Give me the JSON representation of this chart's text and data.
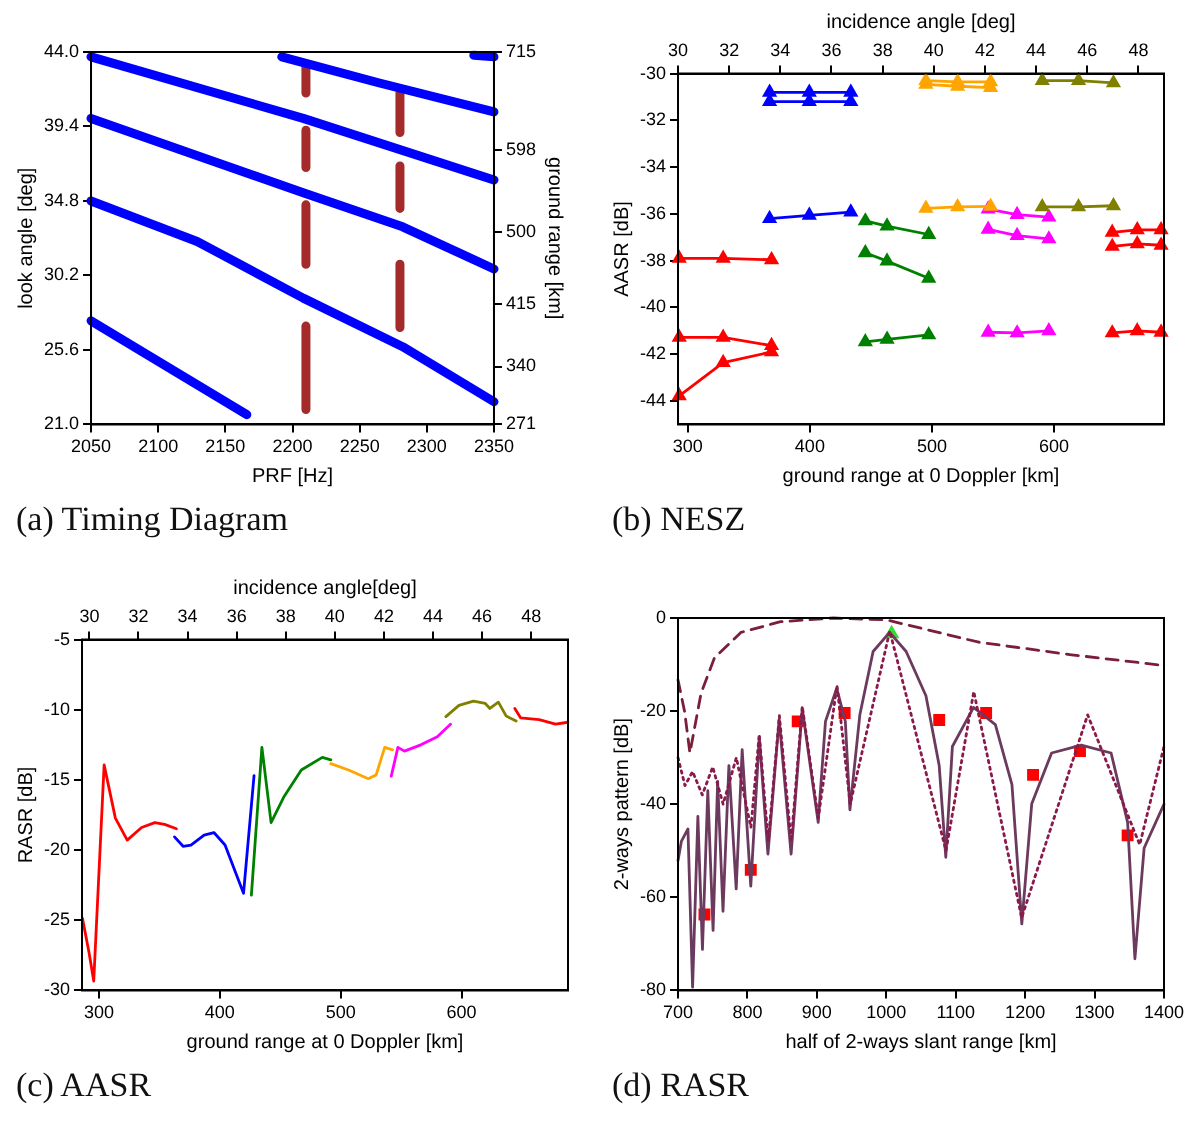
{
  "chart_data": [
    {
      "type": "line",
      "title": "(a) Timing Diagram",
      "xlabel": "PRF [Hz]",
      "ylabel": "look angle [deg]",
      "y2label": "ground range [km]",
      "xlim": [
        2050,
        2350
      ],
      "xticks": [
        2050,
        2100,
        2150,
        2200,
        2250,
        2300,
        2350
      ],
      "ylim": [
        21,
        44
      ],
      "yticks": [
        {
          "value": 21,
          "label": "21.0"
        },
        25.6,
        30.2,
        34.8,
        39.4,
        {
          "value": 44,
          "label": "44.0"
        }
      ],
      "y2lim": [
        271,
        715
      ],
      "y2ticks": [
        271,
        340,
        415,
        500,
        598,
        715
      ],
      "series": [
        {
          "color": "#0000ff",
          "x": [
            2192,
            2264,
            2350
          ],
          "values": [
            43.7,
            42.1,
            40.3
          ]
        },
        {
          "color": "#0000ff",
          "x": [
            2050,
            2208,
            2350
          ],
          "values": [
            43.7,
            39.9,
            36.1
          ]
        },
        {
          "color": "#0000ff",
          "x": [
            2050,
            2208,
            2282,
            2350
          ],
          "values": [
            39.9,
            35.3,
            33.2,
            30.6
          ]
        },
        {
          "color": "#0000ff",
          "x": [
            2050,
            2129,
            2208,
            2282,
            2350
          ],
          "values": [
            34.8,
            32.3,
            28.8,
            25.8,
            22.4
          ]
        },
        {
          "color": "#0000ff",
          "x": [
            2050,
            2114,
            2166
          ],
          "values": [
            27.4,
            24.2,
            21.6
          ]
        },
        {
          "color": "#0000ff",
          "x": [
            2335,
            2350
          ],
          "values": [
            43.8,
            43.7
          ]
        },
        {
          "color": "#a52a2a",
          "x": [
            2210,
            2210,
            null,
            2210,
            2210,
            null,
            2210,
            2210,
            null,
            2210,
            2210
          ],
          "values": [
            43.08,
            41.47,
            null,
            39.17,
            36.87,
            null,
            34.56,
            30.89,
            null,
            27.07,
            21.92
          ]
        },
        {
          "color": "#a52a2a",
          "x": [
            2280,
            2280,
            null,
            2280,
            2280,
            null,
            2280,
            2280
          ],
          "values": [
            41.47,
            39.03,
            null,
            36.96,
            34.34,
            null,
            30.89,
            26.98
          ]
        }
      ]
    },
    {
      "type": "line",
      "title": "(b) NESZ",
      "xlabel": "ground range at 0 Doppler [km]",
      "x2label": "incidence angle [deg]",
      "ylabel": "AASR [dB]",
      "marker": "triangle",
      "xlim": [
        292,
        690
      ],
      "xticks": [
        300,
        400,
        500,
        600
      ],
      "x2lim": [
        30,
        49
      ],
      "x2ticks": [
        30,
        32,
        34,
        36,
        38,
        40,
        42,
        44,
        46,
        48
      ],
      "ylim": [
        -45,
        -30
      ],
      "yticks": [
        -30,
        -32,
        -34,
        -36,
        -38,
        -40,
        -42,
        -44
      ],
      "series": [
        {
          "color": "#0000ff",
          "x": [
            367,
            399.5,
            433.5
          ],
          "values": [
            -30.8,
            -30.8,
            -30.8
          ]
        },
        {
          "color": "#0000ff",
          "x": [
            367,
            399.5,
            433.5
          ],
          "values": [
            -31.2,
            -31.2,
            -31.2
          ]
        },
        {
          "color": "#0000ff",
          "x": [
            367,
            399.5,
            433.5
          ],
          "values": [
            -36.2,
            -36.06,
            -35.92
          ]
        },
        {
          "color": "#ffa500",
          "x": [
            495,
            521,
            548
          ],
          "values": [
            -30.3,
            -30.35,
            -30.35
          ]
        },
        {
          "color": "#ffa500",
          "x": [
            495,
            521,
            548
          ],
          "values": [
            -30.46,
            -30.54,
            -30.6
          ]
        },
        {
          "color": "#ffa500",
          "x": [
            495,
            521,
            548
          ],
          "values": [
            -35.76,
            -35.7,
            -35.68
          ]
        },
        {
          "color": "#808000",
          "x": [
            590.3,
            620,
            648.6
          ],
          "values": [
            -30.3,
            -30.3,
            -30.4
          ]
        },
        {
          "color": "#808000",
          "x": [
            590.3,
            620,
            648.6
          ],
          "values": [
            -35.7,
            -35.7,
            -35.65
          ]
        },
        {
          "color": "#008000",
          "x": [
            445.4,
            463.2,
            497.3
          ],
          "values": [
            -36.3,
            -36.52,
            -36.88
          ]
        },
        {
          "color": "#008000",
          "x": [
            445.4,
            463.2,
            497.3
          ],
          "values": [
            -37.66,
            -38.02,
            -38.75
          ]
        },
        {
          "color": "#008000",
          "x": [
            445.4,
            463.2,
            497.3
          ],
          "values": [
            -41.47,
            -41.36,
            -41.17
          ]
        },
        {
          "color": "#ff00ff",
          "x": [
            546,
            569.7,
            595.7
          ],
          "values": [
            -35.79,
            -36.03,
            -36.14
          ]
        },
        {
          "color": "#ff00ff",
          "x": [
            546,
            569.7,
            595.7
          ],
          "values": [
            -36.66,
            -36.93,
            -37.07
          ]
        },
        {
          "color": "#ff00ff",
          "x": [
            546,
            569.7,
            595.7
          ],
          "values": [
            -41.06,
            -41.09,
            -41.0
          ]
        },
        {
          "color": "#ff0000",
          "x": [
            647.6,
            668.1,
            687.6
          ],
          "values": [
            -36.79,
            -36.68,
            -36.68
          ]
        },
        {
          "color": "#ff0000",
          "x": [
            647.6,
            668.1,
            687.6
          ],
          "values": [
            -37.39,
            -37.28,
            -37.34
          ]
        },
        {
          "color": "#ff0000",
          "x": [
            647.6,
            668.1,
            687.6
          ],
          "values": [
            -41.09,
            -41.0,
            -41.06
          ]
        },
        {
          "color": "#ff0000",
          "x": [
            293,
            329,
            368.6
          ],
          "values": [
            -37.9,
            -37.9,
            -37.96
          ]
        },
        {
          "color": "#ff0000",
          "x": [
            293,
            329,
            368.6
          ],
          "values": [
            -41.28,
            -41.28,
            -41.63
          ]
        },
        {
          "color": "#ff0000",
          "x": [
            293,
            329,
            368.6
          ],
          "values": [
            -43.78,
            -42.36,
            -41.9
          ]
        }
      ]
    },
    {
      "type": "line",
      "title": "(c) AASR",
      "xlabel": "ground range at 0 Doppler [km]",
      "x2label": "incidence angle[deg]",
      "ylabel": "RASR [dB]",
      "xlim": [
        286,
        688
      ],
      "xticks": [
        300,
        400,
        500,
        600
      ],
      "x2lim": [
        29.7,
        49.5
      ],
      "x2ticks": [
        30,
        32,
        34,
        36,
        38,
        40,
        42,
        44,
        46,
        48
      ],
      "ylim": [
        -30,
        -5
      ],
      "yticks": [
        -5,
        -10,
        -15,
        -20,
        -25,
        -30
      ],
      "series": [
        {
          "color": "#ff0000",
          "x": [
            286.4,
            291.8,
            295.7,
            304.3,
            313.6,
            323.4,
            335.3,
            346.2,
            354.3,
            364.1
          ],
          "values": [
            -24.87,
            -27.3,
            -29.33,
            -13.93,
            -17.72,
            -19.29,
            -18.39,
            -18.04,
            -18.17,
            -18.48
          ]
        },
        {
          "color": "#0000ff",
          "x": [
            362.5,
            369.6,
            376.1,
            387,
            395.1,
            404.3,
            419.6,
            428.3
          ],
          "values": [
            -19.06,
            -19.73,
            -19.64,
            -18.93,
            -18.75,
            -19.64,
            -23.08,
            -14.69
          ]
        },
        {
          "color": "#008000",
          "x": [
            426.1,
            434.8,
            442.4,
            453.3,
            467.4,
            484.8,
            491.8
          ],
          "values": [
            -23.21,
            -12.68,
            -18.04,
            -16.16,
            -14.29,
            -13.39,
            -13.57
          ]
        },
        {
          "color": "#ffa500",
          "x": [
            491.8,
            506.5,
            522.8,
            529.3,
            536.4,
            542.9
          ],
          "values": [
            -13.84,
            -14.29,
            -14.91,
            -14.64,
            -12.68,
            -12.86
          ]
        },
        {
          "color": "#ff00ff",
          "x": [
            541.8,
            547.3,
            552.7,
            566.3,
            579.9,
            590.8
          ],
          "values": [
            -14.73,
            -12.68,
            -12.95,
            -12.5,
            -11.92,
            -11.03
          ]
        },
        {
          "color": "#808000",
          "x": [
            587,
            597.8,
            609.8,
            619.6,
            623.4,
            630.4,
            636.9,
            645.1
          ],
          "values": [
            -10.49,
            -9.69,
            -9.38,
            -9.55,
            -9.91,
            -9.46,
            -10.45,
            -10.8
          ]
        },
        {
          "color": "#ff0000",
          "x": [
            644,
            648.9,
            664.1,
            677.7,
            688
          ],
          "values": [
            -9.91,
            -10.58,
            -10.71,
            -11.03,
            -10.89
          ]
        }
      ]
    },
    {
      "type": "line",
      "title": "(d) RASR",
      "xlabel": "half of 2-ways slant range [km]",
      "ylabel": "2-ways pattern [dB]",
      "xlim": [
        700,
        1400
      ],
      "xticks": [
        700,
        800,
        900,
        1000,
        1100,
        1200,
        1300,
        1400
      ],
      "ylim": [
        -80,
        0
      ],
      "yticks": [
        0,
        -20,
        -40,
        -60,
        -80
      ],
      "series": [
        {
          "color": "#8b1a4a",
          "line_style": "dotted",
          "x": [
            700,
            710,
            721,
            735,
            750,
            765,
            784,
            805,
            817,
            830,
            846,
            863,
            879,
            902,
            929,
            948,
            1005,
            1086,
            1126,
            1195,
            1290,
            1365,
            1400
          ],
          "values": [
            -30,
            -36,
            -33,
            -38,
            -32,
            -40,
            -30,
            -45,
            -25,
            -48,
            -21,
            -48,
            -19,
            -43,
            -14.5,
            -40,
            -2.8,
            -50,
            -15.8,
            -64.4,
            -20.8,
            -48.7,
            -27.6
          ]
        },
        {
          "color": "#6b3a5e",
          "x": [
            700,
            704.8,
            714.3,
            721,
            728.6,
            735.2,
            742.9,
            750.5,
            757.1,
            764.8,
            773.3,
            783.8,
            792.4,
            804.8,
            817.1,
            829.5,
            845.7,
            862.9,
            879,
            901.9,
            912.4,
            928.6,
            941,
            947.6,
            961.9,
            981,
            1004.8,
            1028.6,
            1057.1,
            1076.2,
            1085.7,
            1095.2,
            1125.7,
            1157.1,
            1181,
            1195.2,
            1209.5,
            1238.1,
            1281,
            1323.8,
            1347.6,
            1358.1,
            1371.4,
            1400
          ],
          "values": [
            -52.1,
            -48,
            -45.3,
            -79.3,
            -42.6,
            -71.2,
            -37.1,
            -67.1,
            -35.1,
            -63,
            -31.7,
            -58.2,
            -28.3,
            -57.6,
            -25.6,
            -50.7,
            -21.8,
            -50.7,
            -19.5,
            -43.9,
            -22.2,
            -15.1,
            -22.2,
            -41.2,
            -20.8,
            -7.2,
            -3.1,
            -7.2,
            -16.7,
            -31.7,
            -51.4,
            -27.6,
            -19.2,
            -22.9,
            -35.8,
            -65.7,
            -39.9,
            -29,
            -27.3,
            -29,
            -43.9,
            -73.2,
            -49.4,
            -40
          ]
        },
        {
          "color": "#7b1e3a",
          "line_style": "dashed",
          "x": [
            700,
            709.5,
            717.1,
            733.3,
            752.4,
            790.5,
            847.6,
            923.8,
            1000,
            1133.3,
            1266.7,
            1400
          ],
          "values": [
            -13.3,
            -20.1,
            -29,
            -16.1,
            -8.6,
            -3.1,
            -0.8,
            0,
            -0.4,
            -5.2,
            -7.9,
            -10.2
          ]
        },
        {
          "type": "scatter",
          "color": "#ff0000",
          "marker": "square",
          "x": [
            738.1,
            804.8,
            872.4,
            940,
            1076.2,
            1143.8,
            1211.4,
            1279,
            1347.6
          ],
          "values": [
            -63.7,
            -54.1,
            -22.2,
            -20.4,
            -21.9,
            -20.4,
            -33.7,
            -28.6,
            -46.7
          ]
        },
        {
          "type": "scatter",
          "color": "#33dd33",
          "marker": "triangle",
          "x": [
            1007.6
          ],
          "values": [
            -3.4
          ]
        }
      ]
    }
  ]
}
